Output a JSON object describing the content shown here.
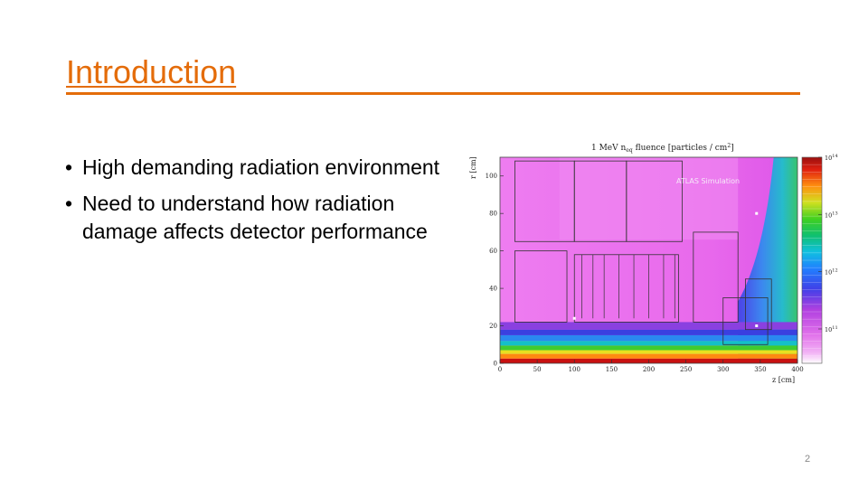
{
  "slide": {
    "title": "Introduction",
    "bullets": [
      "High demanding radiation environment",
      "Need to understand how radiation damage affects detector performance"
    ],
    "page_number": "2"
  },
  "figure": {
    "header_text": "1 MeV n",
    "header_sub": "eq",
    "header_rest": " fluence [particles / cm",
    "header_sup": "2",
    "header_close": "]",
    "watermark": "ATLAS Simulation",
    "colors": {
      "accent": "#E46C0A"
    }
  },
  "chart_data": {
    "type": "heatmap",
    "title": "1 MeV neq fluence [particles / cm2]",
    "xlabel": "z [cm]",
    "ylabel": "r [cm]",
    "xlim": [
      0,
      400
    ],
    "ylim": [
      0,
      110
    ],
    "x_ticks": [
      "0",
      "50",
      "100",
      "150",
      "200",
      "250",
      "300",
      "350",
      "400"
    ],
    "y_ticks": [
      "0",
      "20",
      "40",
      "60",
      "80",
      "100"
    ],
    "colorbar_ticks": [
      {
        "base": "10",
        "exp": "14"
      },
      {
        "base": "10",
        "exp": "13"
      },
      {
        "base": "10",
        "exp": "12"
      },
      {
        "base": "10",
        "exp": "11"
      }
    ],
    "colorbar_scale": "log"
  }
}
